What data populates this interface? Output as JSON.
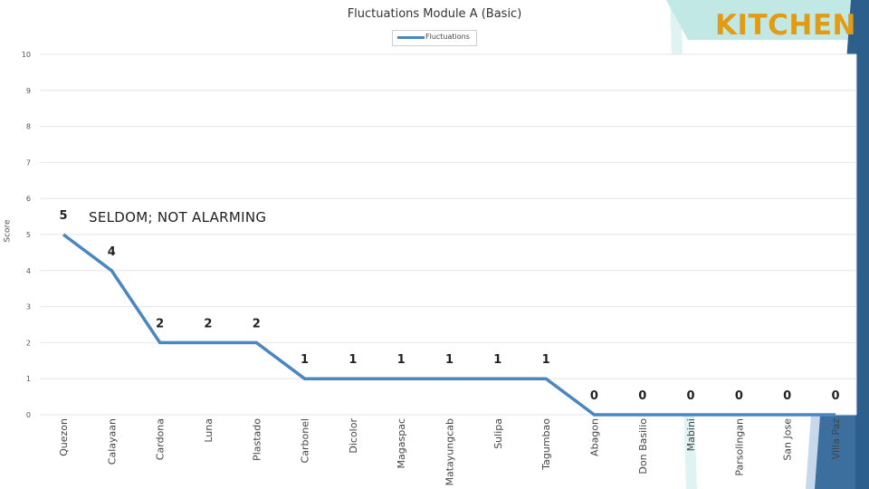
{
  "header": {
    "kitchen_label": "KITCHEN"
  },
  "colors": {
    "line": "#4a86c0",
    "kitchen": "#e39b12",
    "accent_teal": "#8fd6d0",
    "dark_blue": "#2d5f8c",
    "grid": "#e6e6e6"
  },
  "annotation": "SELDOM; NOT ALARMING",
  "chart_data": {
    "type": "line",
    "title": "Fluctuations Module A (Basic)",
    "ylabel": "Score",
    "xlabel": "",
    "ylim": [
      0,
      10
    ],
    "yticks": [
      0,
      1,
      2,
      3,
      4,
      5,
      6,
      7,
      8,
      9,
      10
    ],
    "grid": true,
    "legend": "top-center",
    "categories": [
      "Quezon",
      "Calayaan",
      "Cardona",
      "Luna",
      "Plastado",
      "Carbonel",
      "Dicolor",
      "Magaspac",
      "Matayungcab",
      "Sulipa",
      "Tagumbao",
      "Abagon",
      "Don Basilio",
      "Mabini",
      "Parsolingan",
      "San Jose",
      "Villa Paz"
    ],
    "series": [
      {
        "name": "Fluctuations",
        "values": [
          5,
          4,
          2,
          2,
          2,
          1,
          1,
          1,
          1,
          1,
          1,
          0,
          0,
          0,
          0,
          0,
          0
        ]
      }
    ]
  }
}
